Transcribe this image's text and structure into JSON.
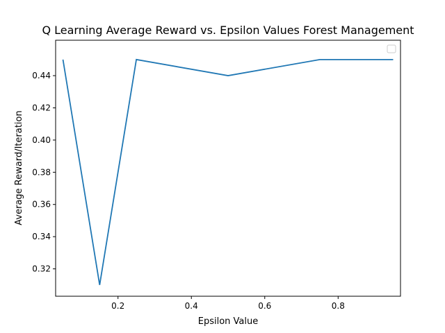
{
  "chart_data": {
    "type": "line",
    "title": "Q Learning Average Reward vs. Epsilon Values Forest Management",
    "xlabel": "Epsilon Value",
    "ylabel": "Average Reward/Iteration",
    "xlim": [
      0.03,
      0.97
    ],
    "ylim": [
      0.303,
      0.462
    ],
    "x_ticks": [
      0.2,
      0.4,
      0.6,
      0.8
    ],
    "x_tick_labels": [
      "0.2",
      "0.4",
      "0.6",
      "0.8"
    ],
    "y_ticks": [
      0.32,
      0.34,
      0.36,
      0.38,
      0.4,
      0.42,
      0.44
    ],
    "y_tick_labels": [
      "0.32",
      "0.34",
      "0.36",
      "0.38",
      "0.40",
      "0.42",
      "0.44"
    ],
    "grid": false,
    "legend": "top-right",
    "series": [
      {
        "x": [
          0.05,
          0.15,
          0.25,
          0.5,
          0.75,
          0.95
        ],
        "values": [
          0.45,
          0.31,
          0.45,
          0.44,
          0.45,
          0.45
        ],
        "color": "#1f77b4"
      }
    ]
  }
}
